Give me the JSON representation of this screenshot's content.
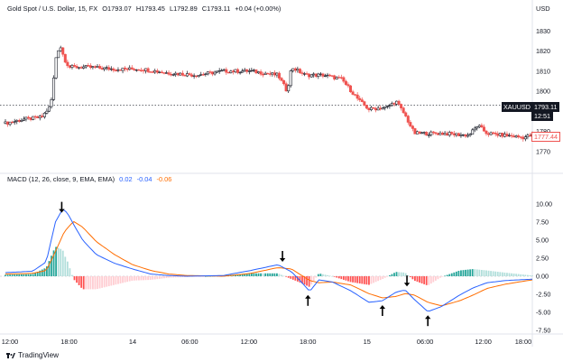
{
  "header": {
    "symbol_text": "Gold Spot / U.S. Dollar, 15, FX",
    "open": "O1793.07",
    "high": "H1793.45",
    "low": "L1792.89",
    "close": "C1793.11",
    "change": "+0.04 (+0.00%)",
    "currency": "USD"
  },
  "price_tag": {
    "symbol": "XAUUSD",
    "price": "1793.11",
    "time": "12:51"
  },
  "ma_tag": {
    "price": "1777.44"
  },
  "macd_legend": {
    "label": "MACD (12, 26, close, 9, EMA, EMA)",
    "macd": "0.02",
    "signal": "-0.04",
    "hist": "-0.06"
  },
  "footer": {
    "brand": "TradingView",
    "logo_icon": "tradingview-logo-icon"
  },
  "colors": {
    "up": "#26a69a",
    "down": "#ef5350",
    "macd_line": "#2962ff",
    "signal_line": "#ff6d00",
    "hist_up_strong": "#26a69a",
    "hist_up_weak": "#b2dfdb",
    "hist_down_strong": "#ff5252",
    "hist_down_weak": "#ffcdd2",
    "candle_up": "#131722",
    "candle_down": "#ef5350",
    "ma_tag": "#ef5350",
    "price_tag_bg": "#131722"
  },
  "chart_data": [
    {
      "type": "candlestick",
      "title": "Gold Spot / U.S. Dollar, 15, FX",
      "y_unit": "USD",
      "ylim": [
        1760,
        1840
      ],
      "y_ticks": [
        1770,
        1780,
        1790,
        1800,
        1810,
        1820,
        1830
      ],
      "x_ticks": [
        "12:00",
        "18:00",
        "14",
        "06:00",
        "12:00",
        "18:00",
        "15",
        "06:00",
        "12:00",
        "18:00"
      ],
      "last_price": 1793.11,
      "close_path": [
        [
          0,
          1784
        ],
        [
          2,
          1786
        ],
        [
          4,
          1787
        ],
        [
          5,
          1793
        ],
        [
          5.6,
          1818
        ],
        [
          6,
          1823
        ],
        [
          6.5,
          1816
        ],
        [
          7,
          1812
        ],
        [
          9,
          1812
        ],
        [
          12,
          1811
        ],
        [
          15,
          1811
        ],
        [
          18,
          1809
        ],
        [
          21,
          1808
        ],
        [
          24,
          1810
        ],
        [
          27,
          1810
        ],
        [
          30,
          1808
        ],
        [
          31,
          1800
        ],
        [
          31.5,
          1812
        ],
        [
          33,
          1808
        ],
        [
          35,
          1808
        ],
        [
          37,
          1806
        ],
        [
          39,
          1795
        ],
        [
          40,
          1791
        ],
        [
          42,
          1792
        ],
        [
          43,
          1795
        ],
        [
          44,
          1788
        ],
        [
          45,
          1779
        ],
        [
          48,
          1779
        ],
        [
          51,
          1778
        ],
        [
          52,
          1783
        ],
        [
          53,
          1779
        ],
        [
          55,
          1778
        ],
        [
          57,
          1777
        ],
        [
          58,
          1778
        ]
      ]
    },
    {
      "type": "macd",
      "title": "MACD (12, 26, close, 9, EMA, EMA)",
      "ylim": [
        -7.5,
        12.5
      ],
      "y_ticks": [
        10.0,
        7.5,
        5.0,
        2.5,
        0.0,
        -2.5,
        -5.0,
        -7.5
      ],
      "last_values": {
        "macd": 0.02,
        "signal": -0.04,
        "histogram": -0.06
      },
      "macd_line": [
        [
          0,
          0.5
        ],
        [
          3,
          0.7
        ],
        [
          4.5,
          2.0
        ],
        [
          5.5,
          7.5
        ],
        [
          6.3,
          9.3
        ],
        [
          6.8,
          8.8
        ],
        [
          7.5,
          7.2
        ],
        [
          8.5,
          5.0
        ],
        [
          10,
          3.0
        ],
        [
          12,
          1.8
        ],
        [
          14,
          1.0
        ],
        [
          16,
          0.3
        ],
        [
          18,
          0.1
        ],
        [
          20,
          0.0
        ],
        [
          24,
          0.1
        ],
        [
          27,
          0.8
        ],
        [
          30,
          1.6
        ],
        [
          31.5,
          0.6
        ],
        [
          32.5,
          -0.7
        ],
        [
          33.5,
          -2.1
        ],
        [
          34.5,
          -0.5
        ],
        [
          36,
          -0.8
        ],
        [
          38,
          -2.0
        ],
        [
          40,
          -3.6
        ],
        [
          41.5,
          -3.4
        ],
        [
          43,
          -2.2
        ],
        [
          44,
          -1.9
        ],
        [
          45,
          -3.2
        ],
        [
          46.5,
          -4.9
        ],
        [
          48,
          -4.2
        ],
        [
          50,
          -2.6
        ],
        [
          51.5,
          -1.6
        ],
        [
          53,
          -0.9
        ],
        [
          55,
          -0.6
        ],
        [
          58,
          -0.4
        ]
      ],
      "signal_line": [
        [
          0,
          0.3
        ],
        [
          3,
          0.4
        ],
        [
          4.5,
          0.8
        ],
        [
          5.5,
          3.4
        ],
        [
          6.5,
          6.2
        ],
        [
          7.5,
          7.6
        ],
        [
          8.5,
          6.8
        ],
        [
          10,
          4.8
        ],
        [
          12,
          3.0
        ],
        [
          14,
          1.6
        ],
        [
          16,
          0.8
        ],
        [
          18,
          0.3
        ],
        [
          20,
          0.1
        ],
        [
          24,
          0.0
        ],
        [
          27,
          0.4
        ],
        [
          30,
          1.2
        ],
        [
          31.5,
          1.0
        ],
        [
          32.5,
          0.2
        ],
        [
          33.5,
          -0.6
        ],
        [
          34.5,
          -0.9
        ],
        [
          36,
          -0.8
        ],
        [
          38,
          -1.2
        ],
        [
          40,
          -2.4
        ],
        [
          41.5,
          -3.0
        ],
        [
          43,
          -2.8
        ],
        [
          44,
          -2.4
        ],
        [
          45,
          -2.6
        ],
        [
          46.5,
          -3.6
        ],
        [
          48,
          -4.1
        ],
        [
          50,
          -3.4
        ],
        [
          51.5,
          -2.6
        ],
        [
          53,
          -1.7
        ],
        [
          55,
          -1.1
        ],
        [
          58,
          -0.5
        ]
      ],
      "annotations": [
        "arrow-down",
        "arrow-down",
        "arrow-up",
        "arrow-up",
        "arrow-down",
        "arrow-up"
      ]
    }
  ]
}
